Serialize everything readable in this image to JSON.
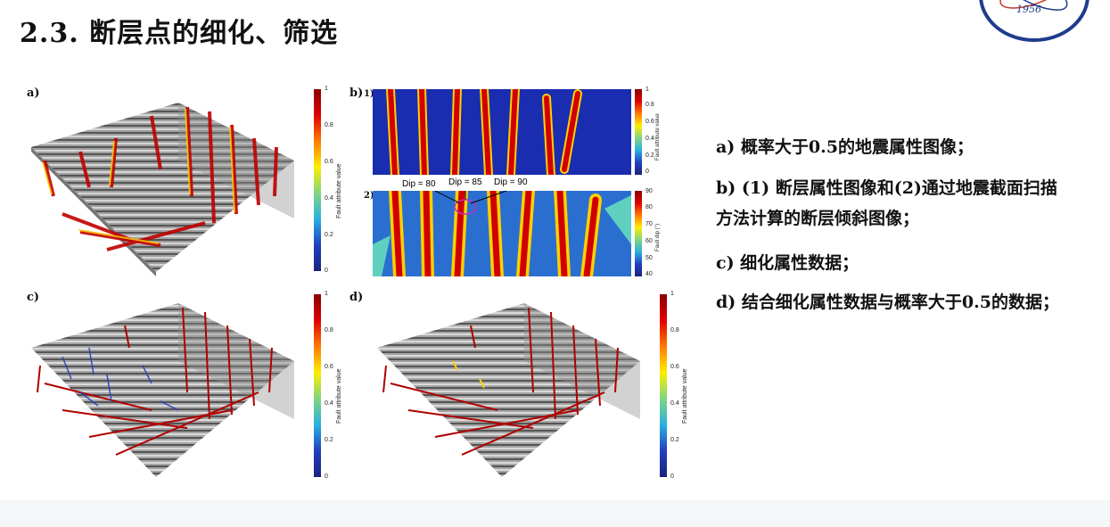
{
  "title": "2.3. 断层点的细化、筛选",
  "logo": {
    "year": "1956"
  },
  "panels": {
    "a": {
      "label": "a)"
    },
    "b": {
      "label": "b)",
      "sub1": "1)",
      "sub2": "2)"
    },
    "c": {
      "label": "c)"
    },
    "d": {
      "label": "d)"
    }
  },
  "colorbar_fault": {
    "title": "Fault attribute value",
    "ticks": [
      "1",
      "0.8",
      "0.6",
      "0.4",
      "0.2",
      "0"
    ]
  },
  "colorbar_dip": {
    "title": "Fault dip (°)",
    "ticks": [
      "90",
      "80",
      "70",
      "60",
      "50",
      "40"
    ]
  },
  "dip_labels": [
    "Dip = 80",
    "Dip = 85",
    "Dip = 90"
  ],
  "description": [
    "a) 概率大于0.5的地震属性图像；",
    "b) (1) 断层属性图像和(2)通过地震截面扫描方法计算的断层倾斜图像；",
    "c) 细化属性数据；",
    "d) 结合细化属性数据与概率大于0.5的数据；"
  ],
  "colors": {
    "jet_high": "#8b0000",
    "jet_low": "#1a237e",
    "seismic_gray": "#9a9a9a"
  }
}
